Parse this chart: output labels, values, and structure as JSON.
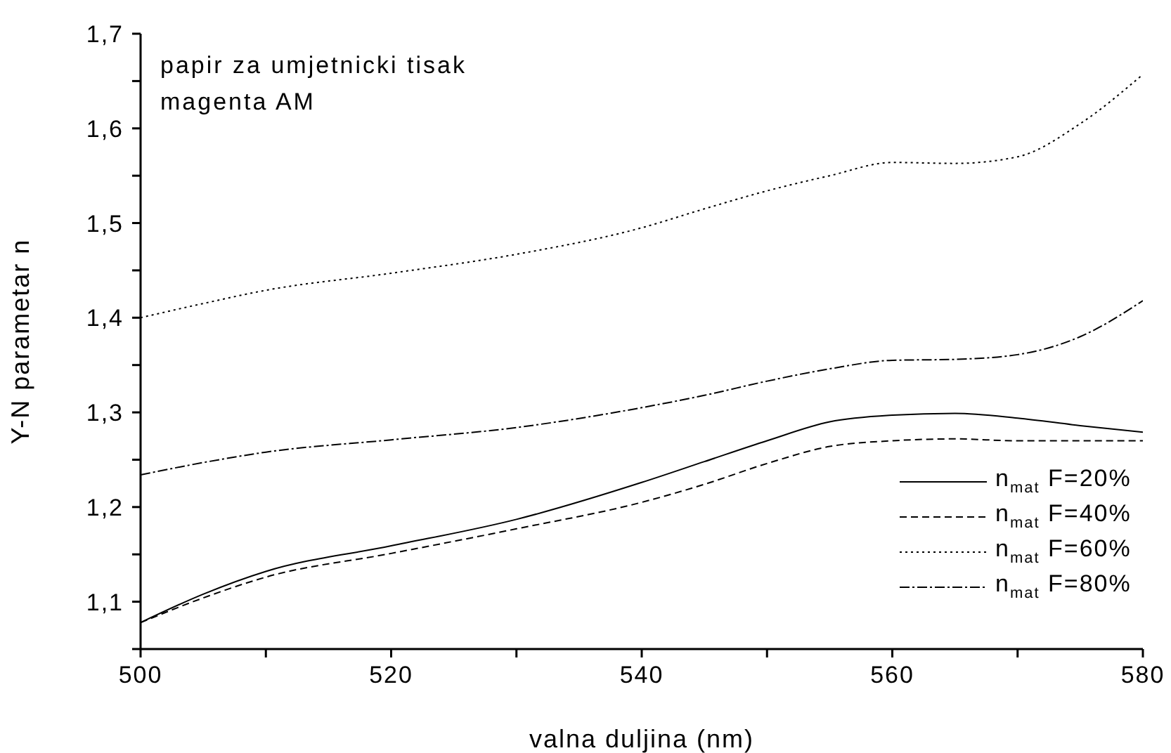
{
  "chart_data": {
    "type": "line",
    "xlabel": "valna duljina (nm)",
    "ylabel": "Y-N parametar n",
    "annotations": [
      "papir za umjetnicki tisak",
      "magenta AM"
    ],
    "x": [
      500,
      505,
      510,
      520,
      530,
      540,
      545,
      550,
      555,
      560,
      565,
      570,
      575,
      580
    ],
    "series": [
      {
        "name": "n$_{mat}$ F=20%",
        "color": "#000000",
        "line_style": "solid",
        "values": [
          1.078,
          1.108,
          1.132,
          1.159,
          1.187,
          1.226,
          1.248,
          1.27,
          1.29,
          1.297,
          1.299,
          1.294,
          1.286,
          1.279
        ]
      },
      {
        "name": "n$_{mat}$ F=40%",
        "color": "#000000",
        "line_style": "dashed",
        "values": [
          1.078,
          1.104,
          1.126,
          1.151,
          1.177,
          1.205,
          1.224,
          1.246,
          1.264,
          1.27,
          1.272,
          1.27,
          1.27,
          1.27
        ]
      },
      {
        "name": "n$_{mat}$ F=60%",
        "color": "#000000",
        "line_style": "dotted",
        "values": [
          1.4,
          1.415,
          1.429,
          1.447,
          1.467,
          1.495,
          1.515,
          1.534,
          1.55,
          1.564,
          1.563,
          1.57,
          1.605,
          1.657
        ]
      },
      {
        "name": "n$_{mat}$ F=80%",
        "color": "#000000",
        "line_style": "dashdot",
        "values": [
          1.234,
          1.247,
          1.258,
          1.271,
          1.284,
          1.305,
          1.318,
          1.333,
          1.346,
          1.355,
          1.356,
          1.361,
          1.38,
          1.418
        ]
      }
    ],
    "xlim": [
      500,
      580
    ],
    "xticks": [
      500,
      {
        "value": 510,
        "label": null
      },
      520,
      {
        "value": 530,
        "label": null
      },
      540,
      {
        "value": 550,
        "label": null
      },
      560,
      {
        "value": 570,
        "label": null
      },
      580
    ],
    "ylim": [
      1.05,
      1.7
    ],
    "yticks": [
      {
        "value": 1.05,
        "label": null
      },
      {
        "value": 1.1,
        "label": "1,1"
      },
      {
        "value": 1.15,
        "label": null
      },
      {
        "value": 1.2,
        "label": "1,2"
      },
      {
        "value": 1.25,
        "label": null
      },
      {
        "value": 1.3,
        "label": "1,3"
      },
      {
        "value": 1.35,
        "label": null
      },
      {
        "value": 1.4,
        "label": "1,4"
      },
      {
        "value": 1.45,
        "label": null
      },
      {
        "value": 1.5,
        "label": "1,5"
      },
      {
        "value": 1.55,
        "label": null
      },
      {
        "value": 1.6,
        "label": "1,6"
      },
      {
        "value": 1.65,
        "label": null
      },
      {
        "value": 1.7,
        "label": "1,7"
      }
    ],
    "grid": false,
    "legend": "bottom right",
    "marker": "none"
  }
}
